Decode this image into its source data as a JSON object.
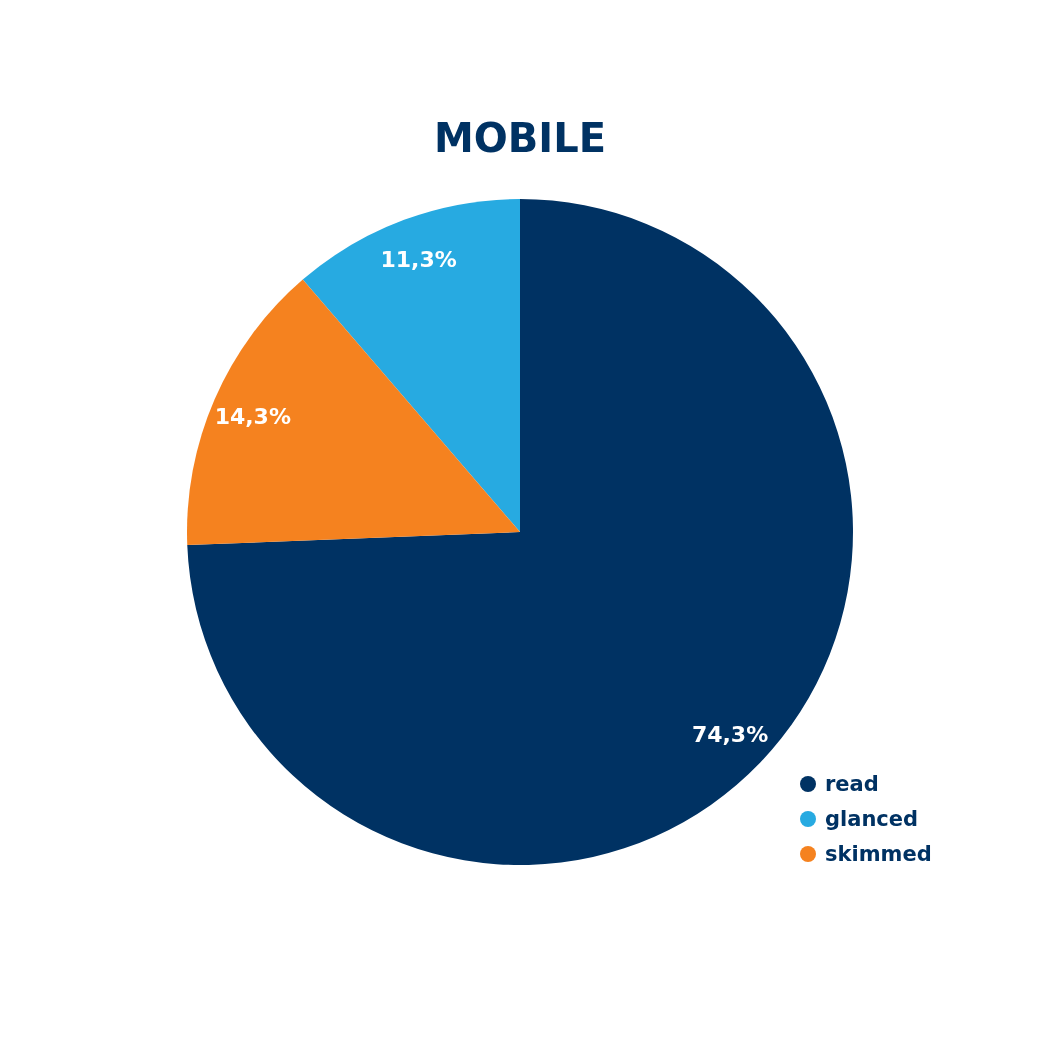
{
  "chart_data": {
    "type": "pie",
    "title": "MOBILE",
    "categories": [
      "read",
      "glanced",
      "skimmed"
    ],
    "values": [
      74.3,
      11.3,
      14.3
    ],
    "value_labels": [
      "74,3%",
      "11,3%",
      "14,3%"
    ],
    "colors": [
      "#003263",
      "#27aae1",
      "#f5821f"
    ],
    "legend": "bottom right"
  }
}
